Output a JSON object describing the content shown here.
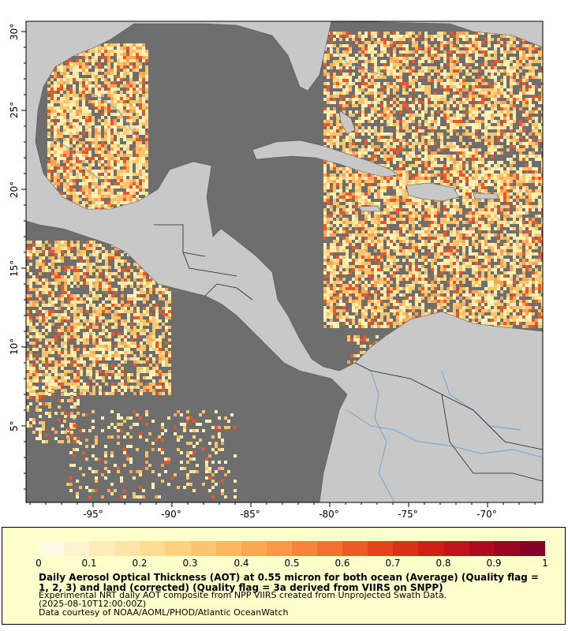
{
  "map": {
    "lat_labels": [
      "30°",
      "25°",
      "20°",
      "15°",
      "10°",
      "5°"
    ],
    "lon_labels": [
      "-95°",
      "-90°",
      "-85°",
      "-80°",
      "-75°",
      "-70°"
    ],
    "colors": {
      "ocean_nodata": "#6e6e6e",
      "land": "#c8c8c8",
      "rivers": "#6a9fd6",
      "borders": "#222222",
      "aot_low": "#fff2b3",
      "aot_mid": "#fcc56a",
      "aot_high": "#e8582c"
    }
  },
  "legend": {
    "ticks": [
      "0",
      "0.1",
      "0.2",
      "0.3",
      "0.4",
      "0.5",
      "0.6",
      "0.7",
      "0.8",
      "0.9",
      "1"
    ],
    "colors": [
      "#fffbe4",
      "#fff4cd",
      "#ffedb9",
      "#ffe5a5",
      "#ffdc91",
      "#fed17f",
      "#fdc56f",
      "#fcb860",
      "#fba953",
      "#f99847",
      "#f6853b",
      "#f27030",
      "#ec5a26",
      "#e5441e",
      "#dc3018",
      "#d01f17",
      "#c11319",
      "#af0a1d",
      "#9a0622",
      "#840326"
    ],
    "title": "Daily Aerosol Optical Thickness (AOT) at 0.55 micron for both ocean (Average) (Quality flag = 1, 2, 3) and land (corrected) (Quality flag = 3a derived from VIIRS on SNPP)",
    "line1": "Experimental NRT daily AOT composite from NPP VIIRS created from Unprojected Swath Data.",
    "line2": "(2025-08-10T12:00:00Z)",
    "line3": "Data courtesy of NOAA/AOML/PHOD/Atlantic OceanWatch"
  }
}
